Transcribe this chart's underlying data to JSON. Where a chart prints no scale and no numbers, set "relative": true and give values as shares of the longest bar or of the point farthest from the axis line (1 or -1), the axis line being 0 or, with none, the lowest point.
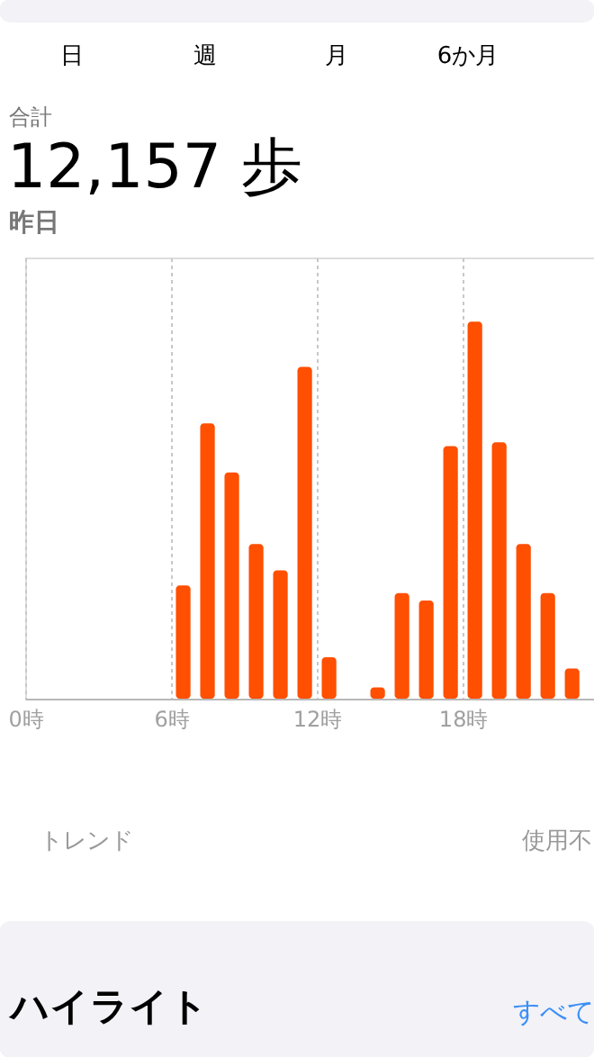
{
  "chart_data": {
    "type": "bar",
    "relative": true,
    "x": [
      6.5,
      7.5,
      8.5,
      9.5,
      10.5,
      11.5,
      12.5,
      13.5,
      14.5,
      15.5,
      16.5,
      17.5,
      18.5,
      19.5,
      20.5,
      21.5,
      22.5
    ],
    "values": [
      0.3,
      0.73,
      0.6,
      0.41,
      0.34,
      0.88,
      0.11,
      0,
      0.03,
      0.28,
      0.26,
      0.67,
      1.0,
      0.68,
      0.41,
      0.28,
      0.08
    ],
    "color": "#ff4f00",
    "xlim": [
      0,
      23.4
    ],
    "xticks": [
      {
        "value": 0,
        "label": "0時"
      },
      {
        "value": 6,
        "label": "6時"
      },
      {
        "value": 12,
        "label": "12時"
      },
      {
        "value": 18,
        "label": "18時"
      }
    ],
    "grid": "x",
    "annotations": [
      "日",
      "週",
      "月",
      "6か月",
      "合計",
      "12,157 歩",
      "昨日",
      "トレンド",
      "使用不",
      "ハイライト",
      "すべて"
    ]
  }
}
